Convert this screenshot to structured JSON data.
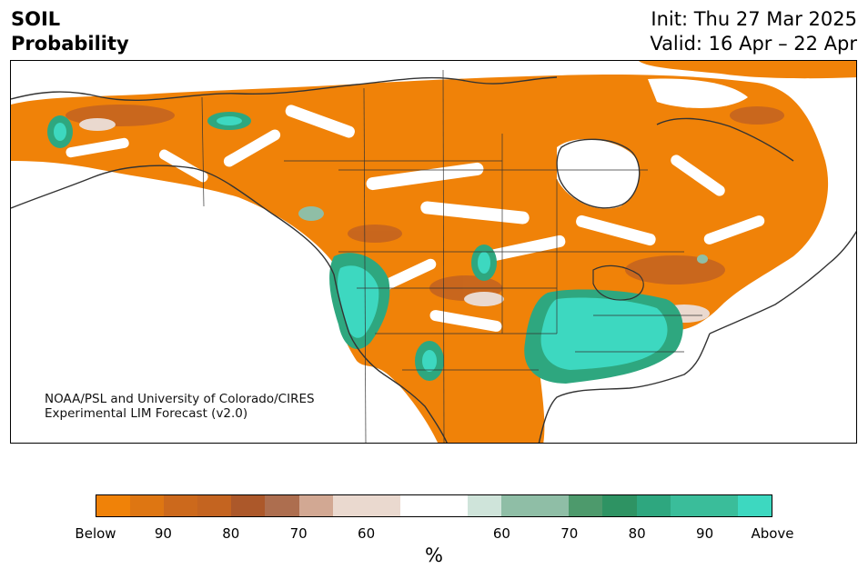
{
  "title": {
    "line1": "SOIL",
    "line2": "Probability"
  },
  "header": {
    "init": "Init: Thu 27 Mar 2025",
    "valid": "Valid: 16 Apr – 22 Apr"
  },
  "credit": {
    "line1": "NOAA/PSL and University of Colorado/CIRES",
    "line2": "Experimental LIM Forecast (v2.0)"
  },
  "colorbar": {
    "colors": [
      "#f08208",
      "#de7612",
      "#cc691c",
      "#c46420",
      "#ac582a",
      "#ad6e4f",
      "#d2a893",
      "#ead9cf",
      "#ead9cf",
      "#ffffff",
      "#ffffff",
      "#cfe4da",
      "#8fbea6",
      "#8fbea6",
      "#4d9a6c",
      "#2e9363",
      "#2ea77f",
      "#3abd9a",
      "#3abd9a",
      "#3dd8c0"
    ],
    "labels": [
      "Below",
      "90",
      "80",
      "70",
      "60",
      "60",
      "70",
      "80",
      "90",
      "Above"
    ],
    "units": "%"
  },
  "colors": {
    "below": "#f08208",
    "below_dark": "#c46420",
    "below_light": "#ead9cf",
    "above": "#3dd8c0",
    "above_mid": "#2ea77f",
    "above_light": "#8fbea6",
    "coast": "#333333"
  }
}
